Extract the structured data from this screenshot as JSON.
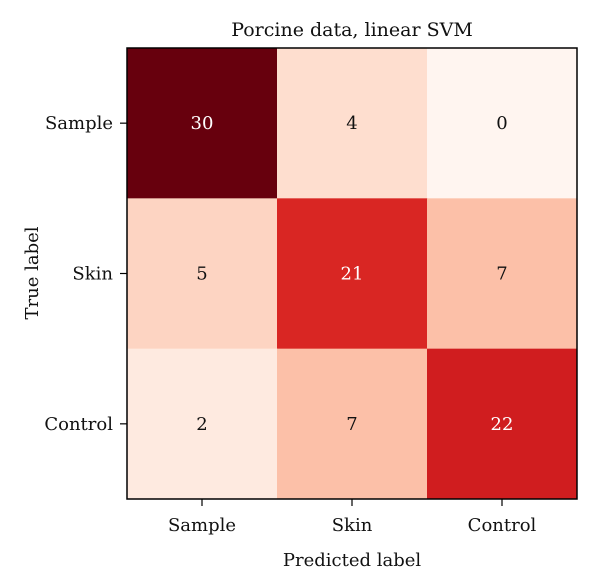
{
  "chart_data": {
    "type": "heatmap",
    "title": "Porcine data, linear SVM",
    "xlabel": "Predicted label",
    "ylabel": "True label",
    "x_categories": [
      "Sample",
      "Skin",
      "Control"
    ],
    "y_categories": [
      "Sample",
      "Skin",
      "Control"
    ],
    "values": [
      [
        30,
        4,
        0
      ],
      [
        5,
        21,
        7
      ],
      [
        2,
        7,
        22
      ]
    ],
    "colormap": "Reds",
    "vmin": 0,
    "vmax": 30,
    "colors": {
      "low": "#fff5f0",
      "high": "#67000d",
      "text_dark": "#111111",
      "text_light": "#ffffff",
      "frame": "#000000"
    }
  }
}
